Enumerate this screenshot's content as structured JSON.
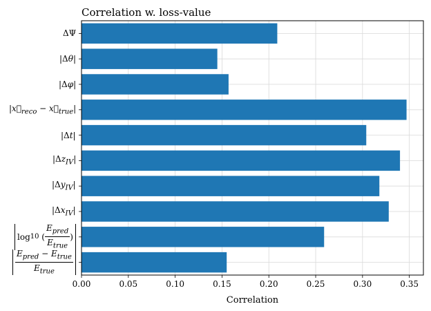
{
  "chart_data": {
    "type": "bar",
    "orientation": "horizontal",
    "title": "Correlation w. loss-value",
    "xlabel": "Correlation",
    "ylabel": "",
    "xlim": [
      0,
      0.365
    ],
    "xticks": [
      0.0,
      0.05,
      0.1,
      0.15,
      0.2,
      0.25,
      0.3,
      0.35
    ],
    "xtick_labels": [
      "0.00",
      "0.05",
      "0.10",
      "0.15",
      "0.20",
      "0.25",
      "0.30",
      "0.35"
    ],
    "grid": true,
    "bar_color": "#1f77b4",
    "categories": [
      "ΔΨ",
      "|Δθ|",
      "|Δφ|",
      "|x⃗_reco − x⃗_true|",
      "|Δt|",
      "|Δz_IV|",
      "|Δy_IV|",
      "|Δx_IV|",
      "|log10(E_pred / E_true)|",
      "|(E_pred − E_true) / E_true|"
    ],
    "values": [
      0.209,
      0.145,
      0.157,
      0.347,
      0.304,
      0.34,
      0.318,
      0.328,
      0.259,
      0.155
    ]
  }
}
